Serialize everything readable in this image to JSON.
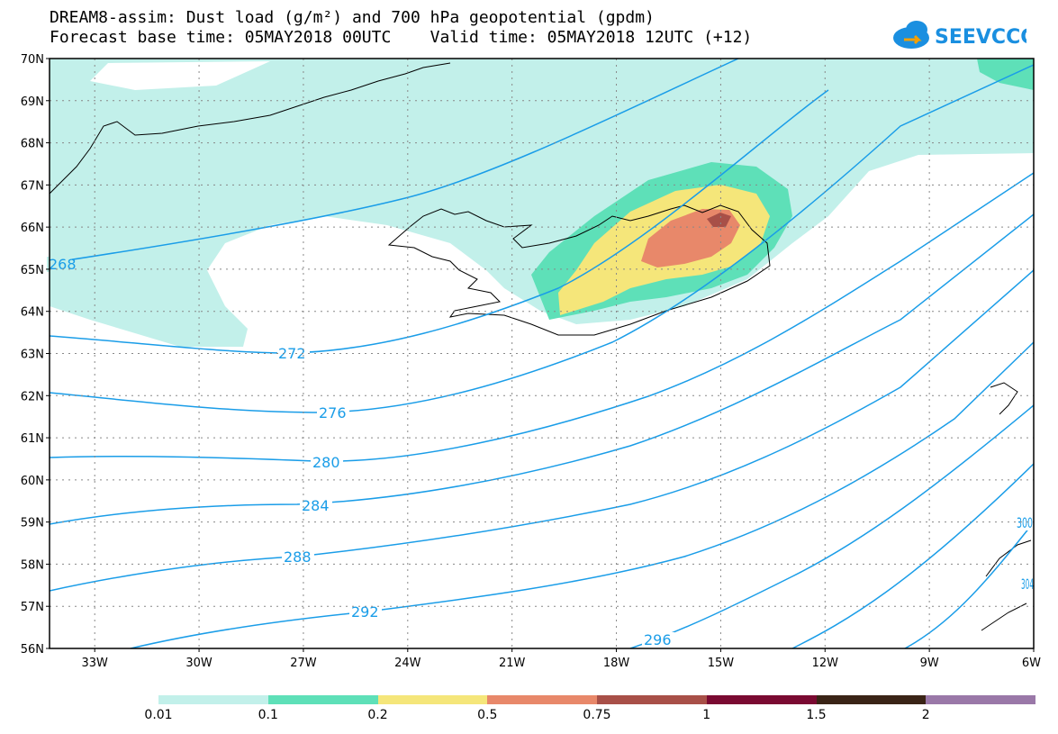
{
  "title": {
    "line1": "DREAM8-assim: Dust load (g/m²) and 700 hPa geopotential (gpdm)",
    "line2": "Forecast base time: 05MAY2018 00UTC    Valid time: 05MAY2018 12UTC (+12)"
  },
  "logo": {
    "text": "SEEVCCC",
    "icon": "cloud-icon",
    "color": "#1a8fe0"
  },
  "map": {
    "lat_labels": [
      "70N",
      "69N",
      "68N",
      "67N",
      "66N",
      "65N",
      "64N",
      "63N",
      "62N",
      "61N",
      "60N",
      "59N",
      "58N",
      "57N",
      "56N"
    ],
    "lon_labels": [
      "33W",
      "30W",
      "27W",
      "24W",
      "21W",
      "18W",
      "15W",
      "12W",
      "9W",
      "6W"
    ],
    "contour_labels": [
      "268",
      "272",
      "276",
      "280",
      "284",
      "288",
      "292",
      "296",
      "300",
      "304"
    ],
    "contour_color": "#1a9de8"
  },
  "legend": {
    "colors": [
      "#c2f0ea",
      "#5ee0b8",
      "#f5e67a",
      "#e8886a",
      "#a85048",
      "#7a0a32",
      "#3a2416",
      "#9a78a8"
    ],
    "tick_labels": [
      "0.01",
      "0.1",
      "0.2",
      "0.5",
      "0.75",
      "1",
      "1.5",
      "2"
    ]
  }
}
